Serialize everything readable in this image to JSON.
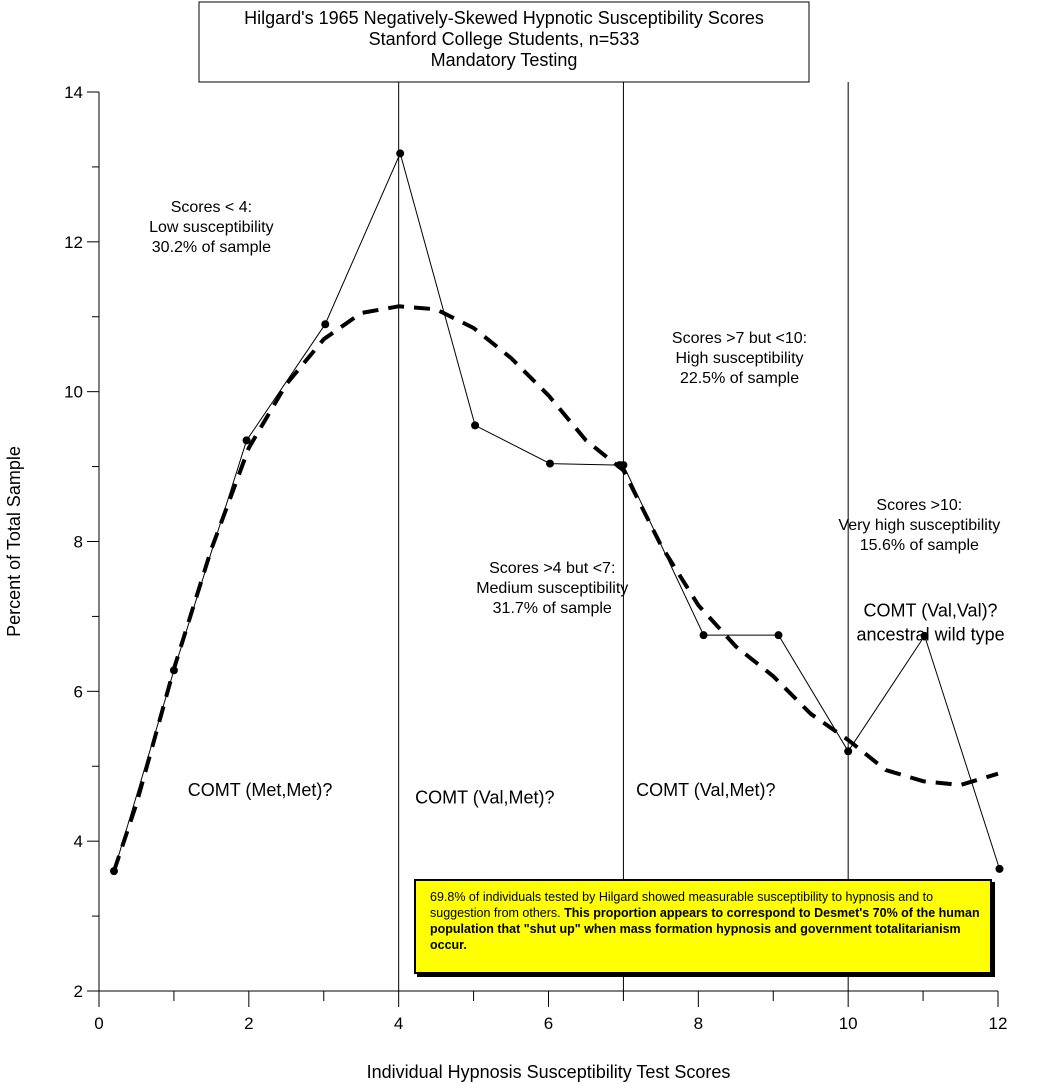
{
  "chart_data": {
    "type": "line",
    "title": [
      "Hilgard's 1965 Negatively-Skewed Hypnotic Susceptibility Scores",
      "Stanford College Students, n=533",
      "Mandatory Testing"
    ],
    "xlabel": "Individual Hypnosis Susceptibility Test Scores",
    "ylabel": "Percent of Total Sample",
    "xlim": [
      0,
      12
    ],
    "ylim": [
      2,
      14
    ],
    "x_ticks": [
      0,
      2,
      4,
      6,
      8,
      10,
      12
    ],
    "y_ticks": [
      2,
      4,
      6,
      8,
      10,
      12,
      14
    ],
    "grid": false,
    "dividers_x": [
      4,
      7,
      10
    ],
    "series": [
      {
        "style": "solid-with-markers",
        "points": [
          [
            0.2,
            3.6
          ],
          [
            1.0,
            6.28
          ],
          [
            1.97,
            9.35
          ],
          [
            3.02,
            10.9
          ],
          [
            4.02,
            13.18
          ],
          [
            5.02,
            9.55
          ],
          [
            6.02,
            9.04
          ],
          [
            6.95,
            9.02
          ],
          [
            7.0,
            9.02
          ],
          [
            8.07,
            6.75
          ],
          [
            9.07,
            6.75
          ],
          [
            10.0,
            5.2
          ],
          [
            11.02,
            6.74
          ],
          [
            12.02,
            3.63
          ]
        ]
      },
      {
        "style": "dashed-trend",
        "points": [
          [
            0.2,
            3.6
          ],
          [
            0.5,
            4.5
          ],
          [
            1.0,
            6.3
          ],
          [
            1.5,
            7.9
          ],
          [
            2.0,
            9.25
          ],
          [
            2.5,
            10.1
          ],
          [
            3.0,
            10.7
          ],
          [
            3.5,
            11.05
          ],
          [
            4.0,
            11.14
          ],
          [
            4.5,
            11.1
          ],
          [
            5.0,
            10.85
          ],
          [
            5.5,
            10.45
          ],
          [
            6.0,
            9.95
          ],
          [
            6.5,
            9.35
          ],
          [
            7.0,
            8.95
          ],
          [
            7.5,
            7.95
          ],
          [
            8.0,
            7.15
          ],
          [
            8.5,
            6.6
          ],
          [
            9.0,
            6.2
          ],
          [
            9.5,
            5.7
          ],
          [
            10.0,
            5.35
          ],
          [
            10.5,
            4.95
          ],
          [
            11.0,
            4.8
          ],
          [
            11.5,
            4.75
          ],
          [
            12.0,
            4.9
          ]
        ]
      }
    ],
    "annotations": [
      {
        "x": 1.5,
        "y": 12.4,
        "lines": [
          "Scores < 4:",
          "Low susceptibility",
          "30.2% of sample"
        ]
      },
      {
        "x": 6.05,
        "y": 7.58,
        "lines": [
          "Scores >4 but <7:",
          "Medium susceptibility",
          "31.7% of sample"
        ]
      },
      {
        "x": 8.55,
        "y": 10.65,
        "lines": [
          "Scores >7 but <10:",
          "High susceptibility",
          "22.5% of sample"
        ]
      },
      {
        "x": 10.95,
        "y": 8.42,
        "lines": [
          "Scores >10:",
          "Very high susceptibility",
          "15.6% of sample"
        ]
      }
    ],
    "comt_labels": [
      {
        "x": 2.15,
        "y": 4.6,
        "lines": [
          "COMT (Met,Met)?"
        ]
      },
      {
        "x": 5.15,
        "y": 4.5,
        "lines": [
          "COMT (Val,Met)?"
        ]
      },
      {
        "x": 8.1,
        "y": 4.6,
        "lines": [
          "COMT (Val,Met)?"
        ]
      },
      {
        "x": 11.1,
        "y": 7.0,
        "lines": [
          "COMT (Val,Val)?",
          "ancestral wild type"
        ]
      }
    ]
  },
  "note": {
    "normal": "69.8% of individuals tested by Hilgard showed measurable susceptibility to hypnosis and to suggestion from others. ",
    "bold": "This proportion appears to correspond to Desmet's 70% of the human population that \"shut up\" when mass formation hypnosis and government totalitarianism occur."
  }
}
